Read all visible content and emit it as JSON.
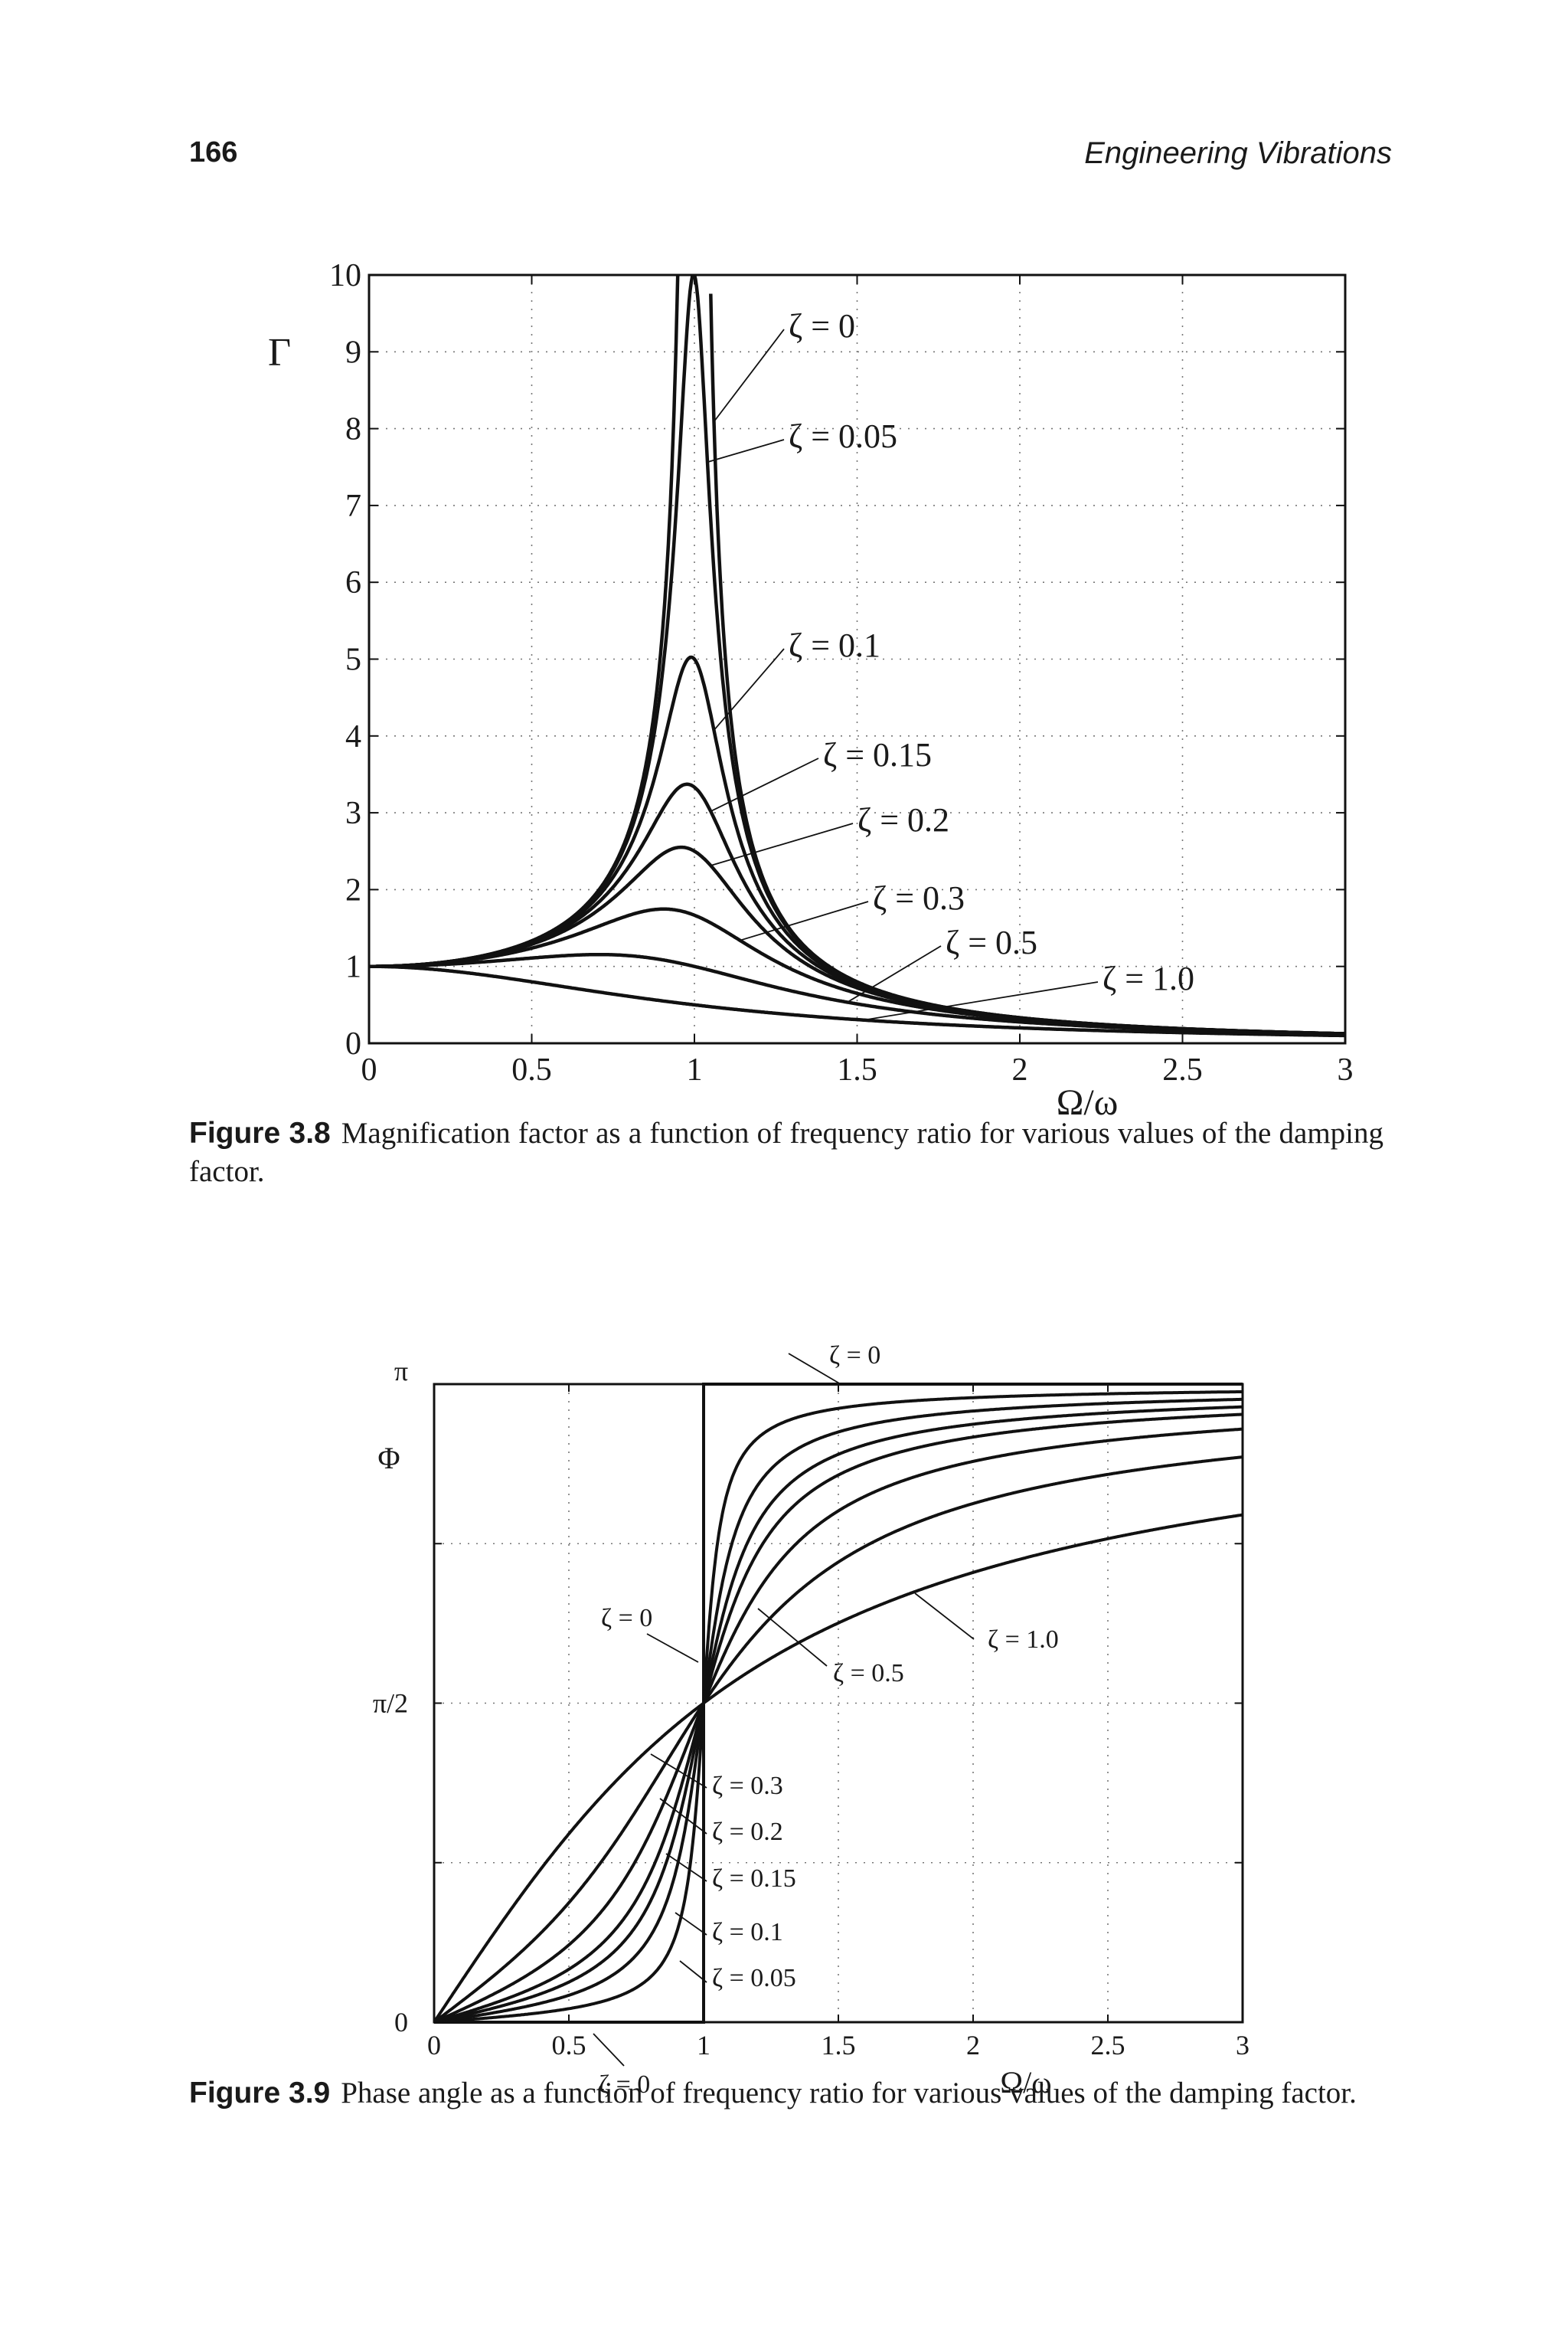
{
  "header": {
    "page_number": "166",
    "book_title": "Engineering Vibrations"
  },
  "figure_3_8": {
    "caption_label": "Figure 3.8",
    "caption_text": "Magnification factor as a function of frequency ratio for various values of the damping factor.",
    "chart_data": {
      "type": "line",
      "title": "",
      "xlabel": "Ω/ω",
      "ylabel": "Γ",
      "xlim": [
        0,
        3
      ],
      "ylim": [
        0,
        10
      ],
      "grid": true,
      "x_ticks": [
        "0",
        "0.5",
        "1",
        "1.5",
        "2",
        "2.5",
        "3"
      ],
      "y_ticks": [
        "0",
        "1",
        "2",
        "3",
        "4",
        "5",
        "6",
        "7",
        "8",
        "9",
        "10"
      ],
      "series": [
        {
          "name": "ζ = 0",
          "zeta": 0
        },
        {
          "name": "ζ = 0.05",
          "zeta": 0.05
        },
        {
          "name": "ζ = 0.1",
          "zeta": 0.1
        },
        {
          "name": "ζ = 0.15",
          "zeta": 0.15
        },
        {
          "name": "ζ = 0.2",
          "zeta": 0.2
        },
        {
          "name": "ζ = 0.3",
          "zeta": 0.3
        },
        {
          "name": "ζ = 0.5",
          "zeta": 0.5
        },
        {
          "name": "ζ = 1.0",
          "zeta": 1.0
        }
      ]
    }
  },
  "figure_3_9": {
    "caption_label": "Figure 3.9",
    "caption_text": "Phase angle as a function of frequency ratio for various values of the damping factor.",
    "chart_data": {
      "type": "line",
      "title": "",
      "xlabel": "Ω/ω",
      "ylabel": "Φ",
      "xlim": [
        0,
        3
      ],
      "ylim": [
        0,
        3.1416
      ],
      "grid": true,
      "x_ticks": [
        "0",
        "0.5",
        "1",
        "1.5",
        "2",
        "2.5",
        "3"
      ],
      "y_ticks": [
        "0",
        "π/2",
        "π"
      ],
      "series": [
        {
          "name": "ζ = 0",
          "zeta": 0
        },
        {
          "name": "ζ = 0.05",
          "zeta": 0.05
        },
        {
          "name": "ζ = 0.1",
          "zeta": 0.1
        },
        {
          "name": "ζ = 0.15",
          "zeta": 0.15
        },
        {
          "name": "ζ = 0.2",
          "zeta": 0.2
        },
        {
          "name": "ζ = 0.3",
          "zeta": 0.3
        },
        {
          "name": "ζ = 0.5",
          "zeta": 0.5
        },
        {
          "name": "ζ = 1.0",
          "zeta": 1.0
        }
      ],
      "annotations": [
        "ζ = 0",
        "ζ = 0",
        "ζ = 0",
        "ζ = 0.05",
        "ζ = 0.1",
        "ζ = 0.15",
        "ζ = 0.2",
        "ζ = 0.3",
        "ζ = 0.5",
        "ζ = 1.0"
      ]
    }
  }
}
